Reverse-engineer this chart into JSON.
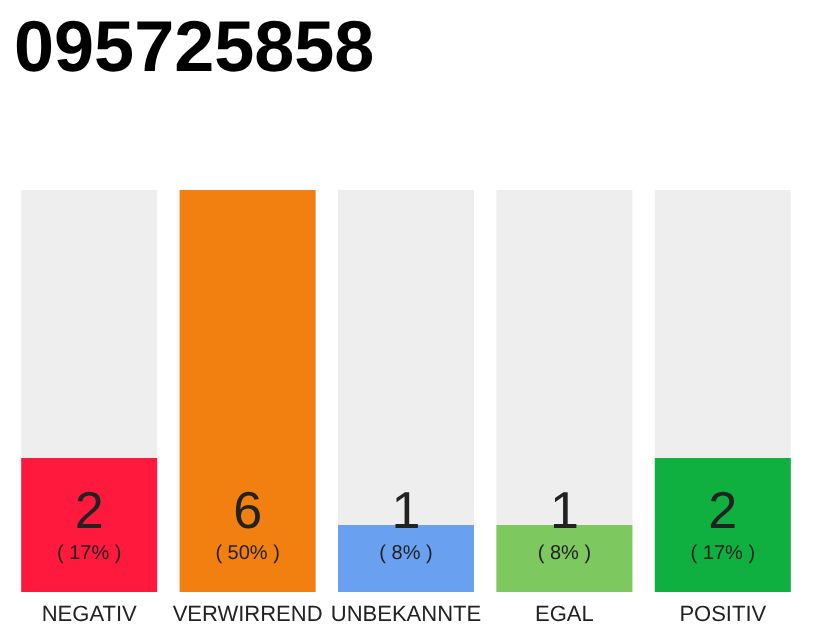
{
  "chart_data": {
    "type": "bar",
    "title": "095725858",
    "categories": [
      "NEGATIV",
      "VERWIRREND",
      "UNBEKANNTE",
      "EGAL",
      "POSITIV"
    ],
    "values": [
      2,
      6,
      1,
      1,
      2
    ],
    "colors": [
      "#ff1a3d",
      "#f28010",
      "#6aa0f0",
      "#7ec860",
      "#0fb040"
    ],
    "value_labels": [
      "2\n( 17% )",
      "6\n( 50% )",
      "1\n( 8% )",
      "1\n( 8% )",
      "2\n( 17% )"
    ],
    "grid": false
  }
}
